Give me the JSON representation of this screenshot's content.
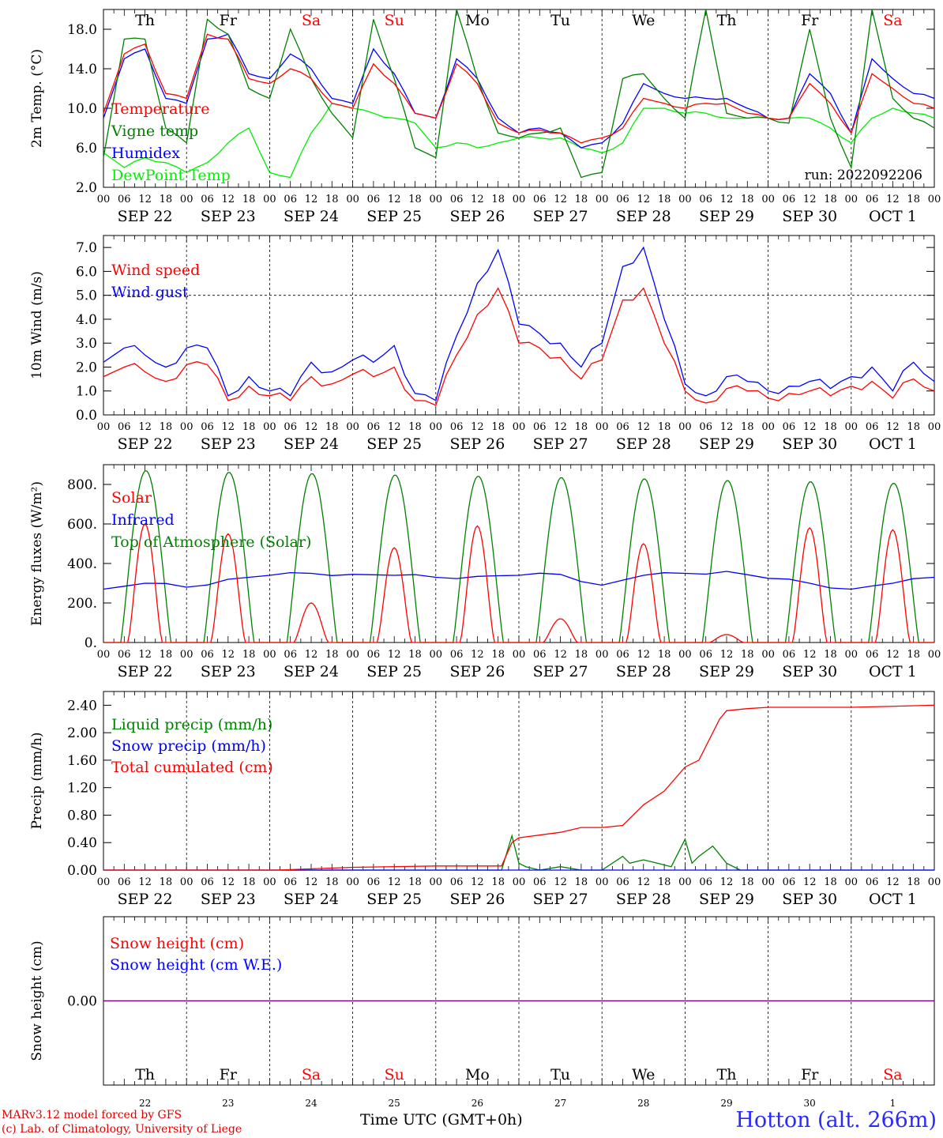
{
  "footer": {
    "model_line": "MARv3.12 model forced by GFS",
    "lab_line": "(c) Lab. of Climatology, University of Liege",
    "time_label": "Time UTC (GMT+0h)",
    "station": "Hotton (alt. 266m)"
  },
  "chart_data": [
    {
      "type": "line",
      "ylabel": "2m Temp. (°C)",
      "ylim": [
        2.0,
        20.0
      ],
      "yticks": [
        "2.0",
        "6.0",
        "10.0",
        "14.0",
        "18.0"
      ],
      "annotation": "run: 2022092206",
      "weekday_labels": [
        "Th",
        "Fr",
        "Sa",
        "Su",
        "Mo",
        "Tu",
        "We",
        "Th",
        "Fr",
        "Sa"
      ],
      "weekend_color": "#ff0000",
      "date_labels": [
        "SEP 22",
        "SEP 23",
        "SEP 24",
        "SEP 25",
        "SEP 26",
        "SEP 27",
        "SEP 28",
        "SEP 29",
        "SEP 30",
        "OCT  1"
      ],
      "hour_ticks": [
        "00",
        "06",
        "12",
        "18"
      ],
      "x_hours": [
        0,
        6,
        12,
        18,
        24,
        30,
        36,
        42,
        48,
        54,
        60,
        66,
        72,
        78,
        84,
        90,
        96,
        102,
        108,
        114,
        120,
        126,
        132,
        138,
        144,
        150,
        156,
        162,
        168,
        174,
        180,
        186,
        192,
        198,
        204,
        210,
        216,
        222,
        228,
        234,
        240
      ],
      "series": [
        {
          "name": "Temperature",
          "color": "#ff0000",
          "values": [
            9.5,
            15.5,
            16.5,
            11.5,
            11.0,
            17.5,
            17.0,
            13.0,
            12.5,
            14.0,
            13.0,
            10.5,
            10.0,
            14.5,
            12.5,
            9.5,
            9.0,
            14.5,
            12.5,
            8.5,
            7.5,
            7.8,
            7.5,
            6.5,
            7.0,
            8.0,
            11.0,
            10.5,
            10.0,
            10.5,
            10.5,
            9.5,
            9.0,
            9.0,
            12.5,
            10.5,
            7.5,
            13.5,
            12.0,
            10.5,
            10.0
          ]
        },
        {
          "name": "Vigne temp",
          "color": "#008000",
          "values": [
            5.0,
            17.0,
            17.0,
            8.0,
            6.5,
            19.0,
            17.5,
            12.0,
            11.0,
            18.0,
            13.0,
            9.5,
            7.0,
            19.0,
            13.0,
            6.0,
            5.0,
            20.0,
            13.0,
            7.5,
            7.0,
            7.5,
            8.0,
            3.0,
            3.5,
            13.0,
            13.5,
            11.0,
            9.0,
            20.0,
            9.5,
            9.0,
            9.0,
            8.5,
            18.0,
            9.0,
            4.0,
            20.0,
            11.0,
            9.0,
            8.0
          ]
        },
        {
          "name": "Humidex",
          "color": "#0000ff",
          "values": [
            9.0,
            15.0,
            16.0,
            11.0,
            10.5,
            17.0,
            17.5,
            13.5,
            13.0,
            15.5,
            14.0,
            11.0,
            10.5,
            16.0,
            13.5,
            9.5,
            9.0,
            15.0,
            13.0,
            9.0,
            7.5,
            8.0,
            7.5,
            6.0,
            6.5,
            8.5,
            12.5,
            11.5,
            11.0,
            11.0,
            11.0,
            10.0,
            9.0,
            9.0,
            13.5,
            11.5,
            7.5,
            15.0,
            13.0,
            11.5,
            11.0
          ]
        },
        {
          "name": "DewPoint Temp",
          "color": "#00ee00",
          "values": [
            5.5,
            4.0,
            5.0,
            4.5,
            3.5,
            4.5,
            6.5,
            8.0,
            3.5,
            3.0,
            7.5,
            10.5,
            10.0,
            9.5,
            9.0,
            8.5,
            6.0,
            6.5,
            6.0,
            6.5,
            7.0,
            7.0,
            7.0,
            6.0,
            5.5,
            6.5,
            10.0,
            10.0,
            9.5,
            9.5,
            9.0,
            9.0,
            9.0,
            9.0,
            9.0,
            8.0,
            6.5,
            9.0,
            10.0,
            9.5,
            9.0
          ]
        }
      ]
    },
    {
      "type": "line",
      "ylabel": "10m Wind (m/s)",
      "ylim": [
        0.0,
        7.5
      ],
      "yticks": [
        "0.0",
        "1.0",
        "2.0",
        "3.0",
        "4.0",
        "5.0",
        "6.0",
        "7.0"
      ],
      "reference_line": 5.0,
      "date_labels": [
        "SEP 22",
        "SEP 23",
        "SEP 24",
        "SEP 25",
        "SEP 26",
        "SEP 27",
        "SEP 28",
        "SEP 29",
        "SEP 30",
        "OCT  1"
      ],
      "hour_ticks": [
        "00",
        "06",
        "12",
        "18"
      ],
      "x_hours": [
        0,
        6,
        12,
        18,
        24,
        30,
        36,
        42,
        48,
        54,
        60,
        66,
        72,
        78,
        84,
        90,
        96,
        102,
        108,
        114,
        120,
        126,
        132,
        138,
        144,
        150,
        156,
        162,
        168,
        174,
        180,
        186,
        192,
        198,
        204,
        210,
        216,
        222,
        228,
        234,
        240
      ],
      "series": [
        {
          "name": "Wind speed",
          "color": "#ff0000",
          "values": [
            1.6,
            2.0,
            1.8,
            1.4,
            2.1,
            2.1,
            0.6,
            1.2,
            0.8,
            0.6,
            1.6,
            1.3,
            1.7,
            1.6,
            2.0,
            0.6,
            0.4,
            2.5,
            4.2,
            5.3,
            3.0,
            2.8,
            2.4,
            1.5,
            2.3,
            4.8,
            5.3,
            3.0,
            1.0,
            0.5,
            1.1,
            1.0,
            0.7,
            0.9,
            1.0,
            0.8,
            1.2,
            1.4,
            0.7,
            1.5,
            1.0
          ]
        },
        {
          "name": "Wind gust",
          "color": "#0000ff",
          "values": [
            2.2,
            2.8,
            2.5,
            2.0,
            2.8,
            2.8,
            0.8,
            1.6,
            1.0,
            0.8,
            2.2,
            1.8,
            2.3,
            2.2,
            2.9,
            0.9,
            0.6,
            3.3,
            5.5,
            6.9,
            3.8,
            3.4,
            3.0,
            2.0,
            3.0,
            6.2,
            7.0,
            4.0,
            1.3,
            0.8,
            1.6,
            1.4,
            1.0,
            1.2,
            1.4,
            1.1,
            1.6,
            2.0,
            1.0,
            2.2,
            1.4
          ]
        }
      ]
    },
    {
      "type": "line",
      "ylabel": "Energy fluxes (W/m²)",
      "ylim": [
        0,
        900
      ],
      "yticks": [
        "0.",
        "200.",
        "400.",
        "600.",
        "800."
      ],
      "date_labels": [
        "SEP 22",
        "SEP 23",
        "SEP 24",
        "SEP 25",
        "SEP 26",
        "SEP 27",
        "SEP 28",
        "SEP 29",
        "SEP 30",
        "OCT  1"
      ],
      "hour_ticks": [
        "00",
        "06",
        "12",
        "18"
      ],
      "solar_peaks": [
        600,
        550,
        200,
        480,
        590,
        120,
        500,
        40,
        580,
        570
      ],
      "toa_peaks": [
        870,
        862,
        855,
        848,
        842,
        835,
        828,
        820,
        814,
        806
      ],
      "infrared_hours": [
        0,
        12,
        24,
        36,
        48,
        60,
        72,
        84,
        96,
        108,
        120,
        132,
        144,
        156,
        168,
        180,
        192,
        204,
        216,
        228,
        240
      ],
      "series": [
        {
          "name": "Solar",
          "color": "#ff0000"
        },
        {
          "name": "Infrared",
          "color": "#0000ff",
          "values": [
            270,
            300,
            280,
            320,
            340,
            350,
            345,
            340,
            330,
            335,
            340,
            345,
            290,
            340,
            350,
            360,
            325,
            300,
            270,
            300,
            330
          ]
        },
        {
          "name": "Top of Atmosphere (Solar)",
          "color": "#008000"
        }
      ]
    },
    {
      "type": "line",
      "ylabel": "Precip (mm/h)",
      "ylim": [
        0.0,
        2.6
      ],
      "yticks": [
        "0.00",
        "0.40",
        "0.80",
        "1.20",
        "1.60",
        "2.00",
        "2.40"
      ],
      "date_labels": [
        "SEP 22",
        "SEP 23",
        "SEP 24",
        "SEP 25",
        "SEP 26",
        "SEP 27",
        "SEP 28",
        "SEP 29",
        "SEP 30",
        "OCT  1"
      ],
      "hour_ticks": [
        "00",
        "06",
        "12",
        "18"
      ],
      "series": [
        {
          "name": "Liquid precip (mm/h)",
          "color": "#008000",
          "x": [
            0,
            115,
            118,
            120,
            122,
            126,
            132,
            138,
            144,
            150,
            152,
            156,
            160,
            164,
            168,
            170,
            172,
            176,
            180,
            184,
            190,
            240
          ],
          "values": [
            0,
            0,
            0.5,
            0.1,
            0.05,
            0,
            0.05,
            0,
            0,
            0.2,
            0.1,
            0.15,
            0.1,
            0.05,
            0.45,
            0.1,
            0.2,
            0.35,
            0.1,
            0,
            0,
            0
          ]
        },
        {
          "name": "Snow precip (mm/h)",
          "color": "#0000ff",
          "x": [
            0,
            240
          ],
          "values": [
            0,
            0
          ]
        },
        {
          "name": "Total cumulated (cm)",
          "color": "#ff0000",
          "x": [
            0,
            50,
            72,
            96,
            115,
            118,
            120,
            132,
            138,
            144,
            150,
            156,
            162,
            168,
            172,
            178,
            180,
            186,
            192,
            216,
            240
          ],
          "values": [
            0,
            0,
            0.04,
            0.06,
            0.06,
            0.4,
            0.47,
            0.55,
            0.62,
            0.62,
            0.65,
            0.95,
            1.15,
            1.5,
            1.6,
            2.2,
            2.32,
            2.35,
            2.37,
            2.37,
            2.4
          ]
        }
      ]
    },
    {
      "type": "line",
      "ylabel": "Snow height (cm)",
      "ylim": [
        -1,
        1
      ],
      "yticks": [
        "0.00"
      ],
      "weekday_labels": [
        "Th",
        "Fr",
        "Sa",
        "Su",
        "Mo",
        "Tu",
        "We",
        "Th",
        "Fr",
        "Sa"
      ],
      "day_numbers": [
        "22",
        "23",
        "24",
        "25",
        "26",
        "27",
        "28",
        "29",
        "30",
        "1"
      ],
      "series": [
        {
          "name": "Snow height (cm)",
          "color": "#ff0000",
          "values": [
            0,
            0
          ]
        },
        {
          "name": "Snow height (cm W.E.)",
          "color": "#0000ff",
          "values": [
            0,
            0
          ]
        }
      ]
    }
  ]
}
